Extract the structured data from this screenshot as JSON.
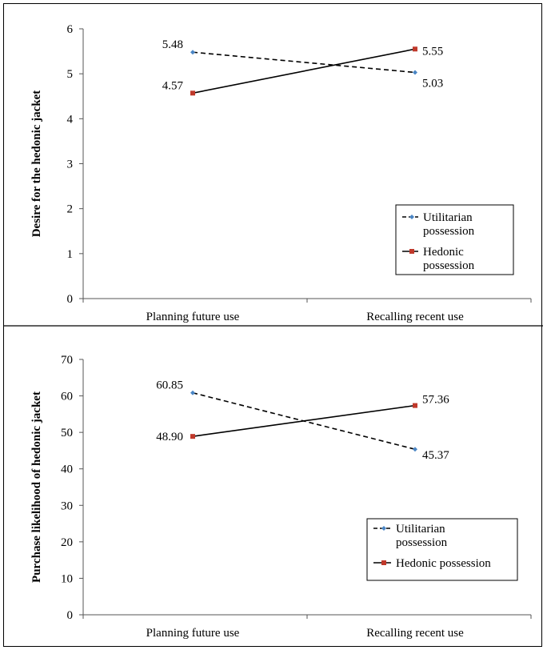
{
  "chart_data": [
    {
      "type": "line",
      "title": "",
      "xlabel": "",
      "ylabel": "Desire for the hedonic jacket",
      "categories": [
        "Planning future use",
        "Recalling recent use"
      ],
      "ylim": [
        0,
        6
      ],
      "yticks": [
        0,
        1,
        2,
        3,
        4,
        5,
        6
      ],
      "grid": false,
      "legend_position": "bottom-right",
      "series": [
        {
          "name": "Utilitarian possession",
          "legend_lines": [
            "Utilitarian",
            "possession"
          ],
          "values": [
            5.48,
            5.03
          ],
          "labels": [
            "5.48",
            "5.03"
          ],
          "color": "#4a86c5",
          "line": "dashed"
        },
        {
          "name": "Hedonic possession",
          "legend_lines": [
            "Hedonic",
            "possession"
          ],
          "values": [
            4.57,
            5.55
          ],
          "labels": [
            "4.57",
            "5.55"
          ],
          "color": "#c0392b",
          "line": "solid"
        }
      ]
    },
    {
      "type": "line",
      "title": "",
      "xlabel": "",
      "ylabel": "Purchase likelihood of hedonic jacket",
      "categories": [
        "Planning future use",
        "Recalling recent use"
      ],
      "ylim": [
        0,
        70
      ],
      "yticks": [
        0,
        10,
        20,
        30,
        40,
        50,
        60,
        70
      ],
      "grid": false,
      "legend_position": "bottom-right",
      "series": [
        {
          "name": "Utilitarian possession",
          "legend_lines": [
            "Utilitarian",
            "possession"
          ],
          "values": [
            60.85,
            45.37
          ],
          "labels": [
            "60.85",
            "45.37"
          ],
          "color": "#4a86c5",
          "line": "dashed"
        },
        {
          "name": "Hedonic possession",
          "legend_lines": [
            "Hedonic possession"
          ],
          "values": [
            48.9,
            57.36
          ],
          "labels": [
            "48.90",
            "57.36"
          ],
          "color": "#c0392b",
          "line": "solid"
        }
      ]
    }
  ]
}
